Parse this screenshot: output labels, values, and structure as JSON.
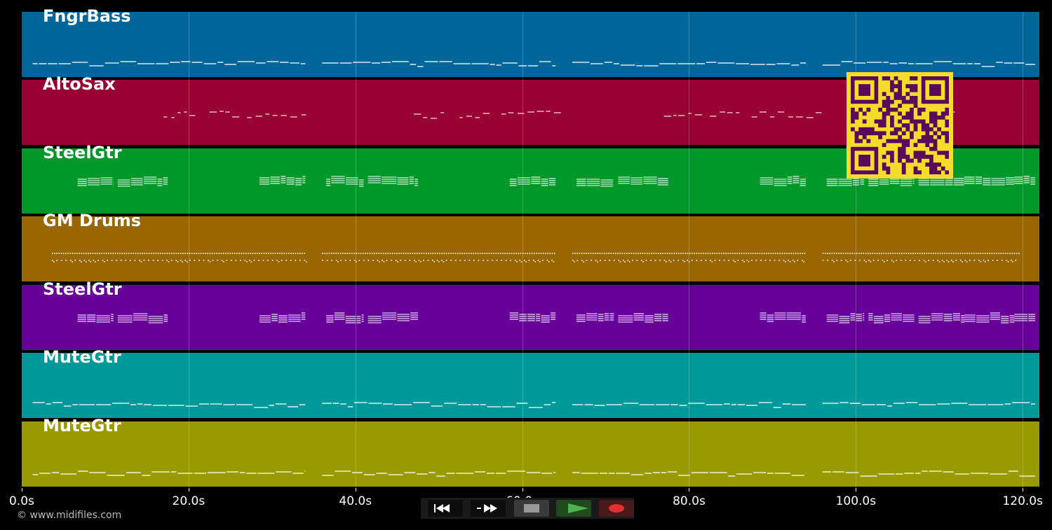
{
  "tracks": [
    {
      "name": "FngrBass",
      "color": "#006699",
      "pattern": "bass"
    },
    {
      "name": "AltoSax",
      "color": "#990033",
      "pattern": "sax"
    },
    {
      "name": "SteelGtr",
      "color": "#009929",
      "pattern": "gtr"
    },
    {
      "name": "GM Drums",
      "color": "#996600",
      "pattern": "drums"
    },
    {
      "name": "SteelGtr",
      "color": "#660099",
      "pattern": "gtr"
    },
    {
      "name": "MuteGtr",
      "color": "#009999",
      "pattern": "bass"
    },
    {
      "name": "MuteGtr",
      "color": "#999900",
      "pattern": "bass"
    }
  ],
  "timeline": {
    "axis_min": 0,
    "axis_max": 122,
    "ticks": [
      {
        "value": 0,
        "label": "0.0s"
      },
      {
        "value": 20,
        "label": "20.0s"
      },
      {
        "value": 40,
        "label": "40.0s"
      },
      {
        "value": 60,
        "label": "60.0s"
      },
      {
        "value": 80,
        "label": "80.0s"
      },
      {
        "value": 100,
        "label": "100.0s"
      },
      {
        "value": 120,
        "label": "120.0s"
      }
    ]
  },
  "copyright": "© www.midifiles.com",
  "transport": {
    "buttons": [
      {
        "name": "rewind-button",
        "icon": "rewind-icon"
      },
      {
        "name": "fast-forward-button",
        "icon": "fast-forward-icon"
      },
      {
        "name": "stop-button",
        "icon": "stop-icon"
      },
      {
        "name": "play-button",
        "icon": "play-icon"
      },
      {
        "name": "record-button",
        "icon": "record-icon"
      }
    ]
  },
  "qr_code": {
    "icon": "qr-code-icon",
    "color_bg": "#f5dc2a",
    "color_fg": "#5a0a5a"
  }
}
